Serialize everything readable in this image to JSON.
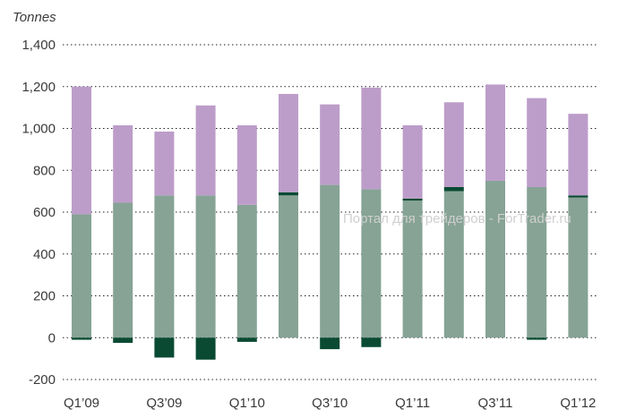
{
  "chart_data": {
    "type": "bar",
    "stacked": true,
    "unit_label": "Tonnes",
    "categories": [
      "Q1'09",
      "Q2'09",
      "Q3'09",
      "Q4'09",
      "Q1'10",
      "Q2'10",
      "Q3'10",
      "Q4'10",
      "Q1'11",
      "Q2'11",
      "Q3'11",
      "Q4'11",
      "Q1'12"
    ],
    "x_tick_labels": [
      "Q1’09",
      "",
      "Q3’09",
      "",
      "Q1’10",
      "",
      "Q3’10",
      "",
      "Q1’11",
      "",
      "Q3’11",
      "",
      "Q1’12"
    ],
    "series": [
      {
        "color": "#86a395",
        "values": [
          590,
          645,
          680,
          680,
          635,
          680,
          730,
          710,
          655,
          700,
          750,
          720,
          670
        ]
      },
      {
        "color": "#0a4a33",
        "values": [
          -10,
          -25,
          -95,
          -105,
          -20,
          15,
          -55,
          -45,
          10,
          20,
          0,
          -10,
          10
        ]
      },
      {
        "color": "#bc9dc9",
        "values": [
          610,
          370,
          305,
          430,
          380,
          470,
          385,
          485,
          350,
          405,
          460,
          425,
          390
        ]
      }
    ],
    "ylim": [
      -200,
      1400
    ],
    "y_ticks": [
      -200,
      0,
      200,
      400,
      600,
      800,
      1000,
      1200,
      1400
    ],
    "y_tick_labels": [
      "-200",
      "0",
      "200",
      "400",
      "600",
      "800",
      "1,000",
      "1,200",
      "1,400"
    ],
    "grid": "dotted-horizontal"
  },
  "watermark": "Портал для трейдеров - ForTrader.ru"
}
